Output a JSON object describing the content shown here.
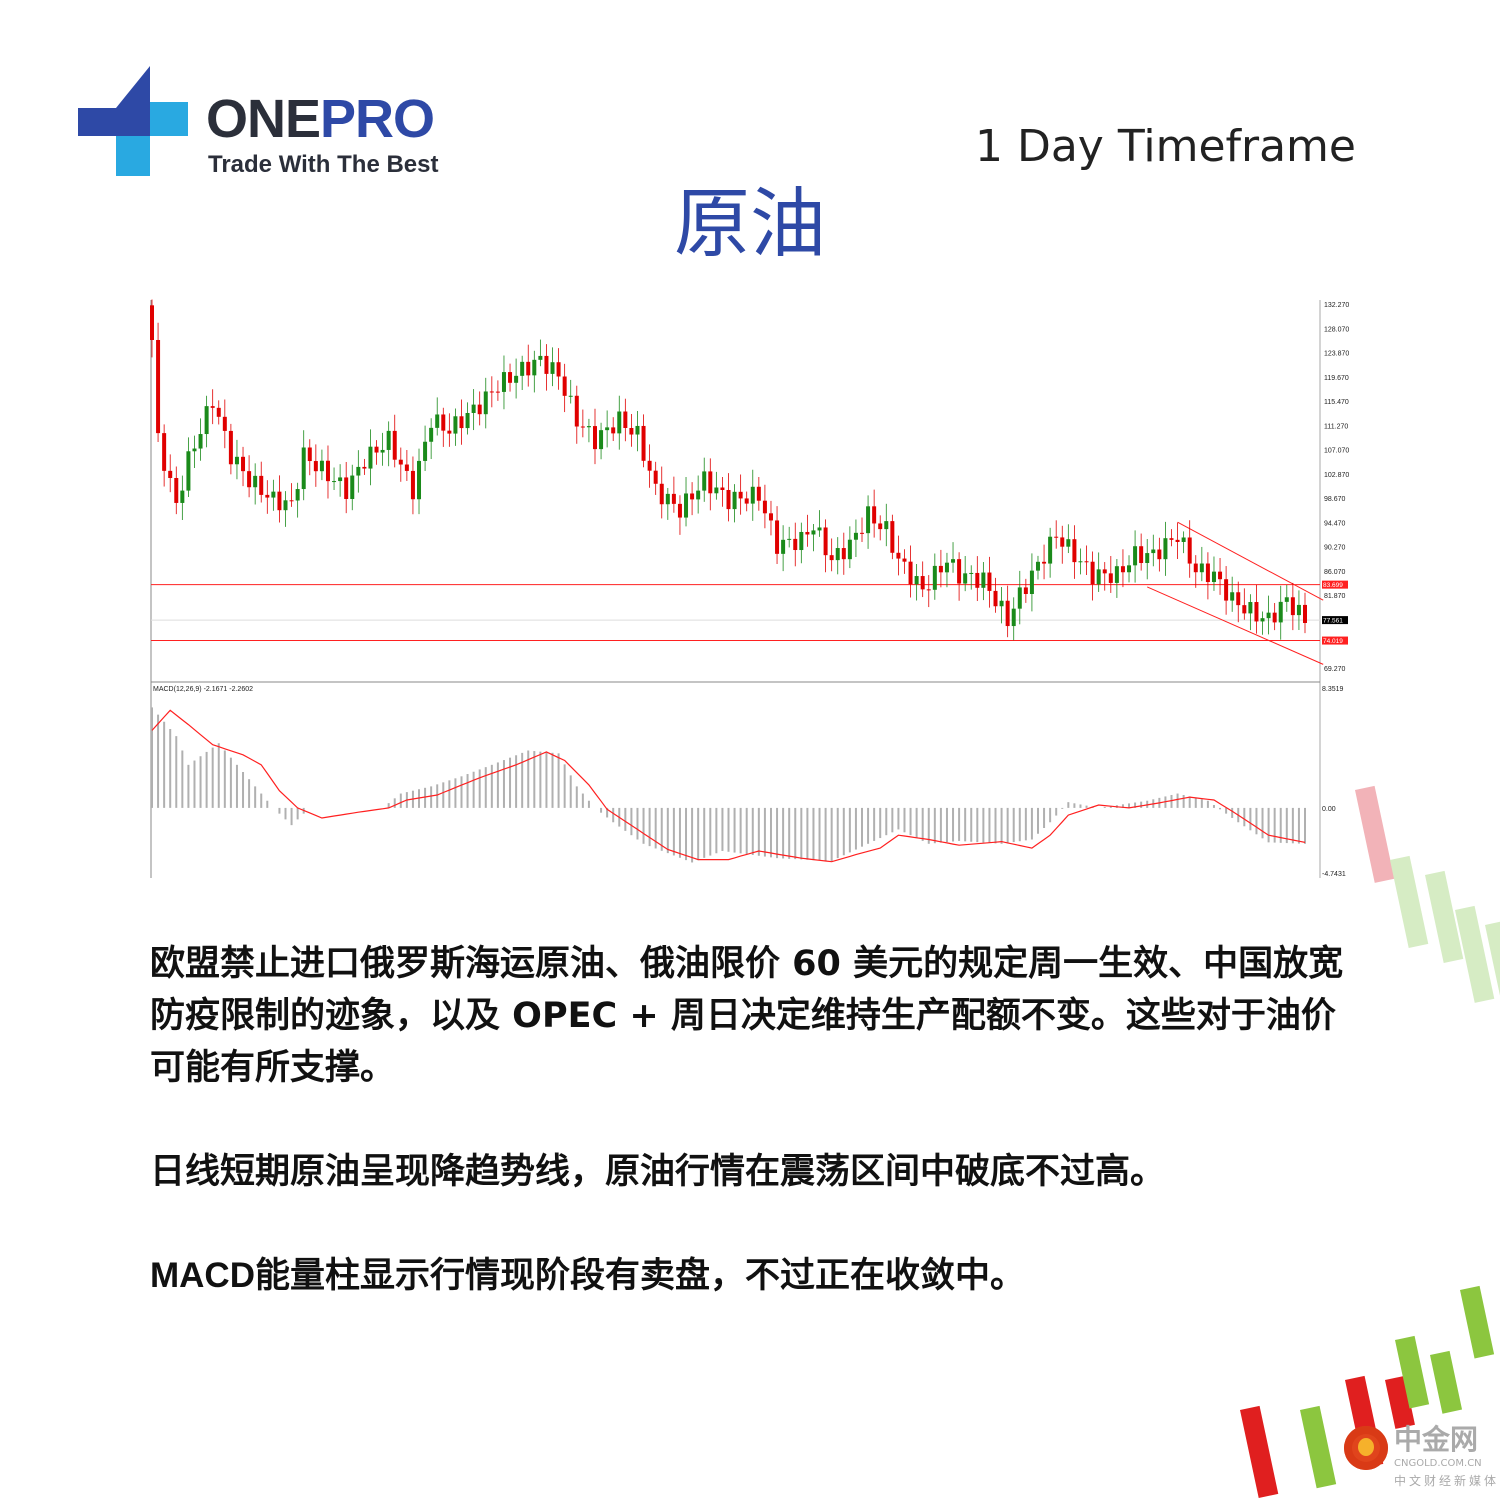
{
  "header": {
    "brand_one": "ONE",
    "brand_pro": "PRO",
    "tagline": "Trade With The Best",
    "timeframe": "1 Day Timeframe",
    "title": "原油"
  },
  "colors": {
    "brand_blue": "#2e49a6",
    "brand_light": "#29a9e1",
    "bull": "#1a8a1a",
    "bear": "#e00000",
    "level_line": "#ff2020"
  },
  "chart_data": {
    "type": "candlestick",
    "price_axis_ticks": [
      "132.270",
      "128.070",
      "123.870",
      "119.670",
      "115.470",
      "111.270",
      "107.070",
      "102.870",
      "98.670",
      "94.470",
      "90.270",
      "86.070",
      "81.870",
      "69.270"
    ],
    "ylim": [
      69.27,
      132.27
    ],
    "levels": [
      {
        "value": 83.699,
        "label": "83.699",
        "color": "#ff2020"
      },
      {
        "value": 74.019,
        "label": "74.019",
        "color": "#ff2020"
      },
      {
        "value": 77.561,
        "label": "77.561",
        "color": "#000000"
      }
    ],
    "trendlines": [
      [
        [
          169,
          94.5
        ],
        [
          193,
          81.0
        ]
      ],
      [
        [
          164,
          83.3
        ],
        [
          193,
          69.9
        ]
      ]
    ],
    "closes": [
      [
        0,
        126.04
      ],
      [
        1,
        108.73
      ],
      [
        4,
        97.48
      ],
      [
        6,
        105.27
      ],
      [
        10,
        115.65
      ],
      [
        13,
        106.13
      ],
      [
        16,
        101.81
      ],
      [
        20,
        98.35
      ],
      [
        23,
        97.48
      ],
      [
        25,
        106.13
      ],
      [
        28,
        103.54
      ],
      [
        32,
        100.08
      ],
      [
        35,
        105.27
      ],
      [
        39,
        108.73
      ],
      [
        43,
        100.08
      ],
      [
        46,
        112.19
      ],
      [
        49,
        110.46
      ],
      [
        54,
        114.79
      ],
      [
        57,
        118.25
      ],
      [
        61,
        120.85
      ],
      [
        64,
        122.58
      ],
      [
        67,
        119.98
      ],
      [
        70,
        112.19
      ],
      [
        73,
        108.73
      ],
      [
        77,
        112.19
      ],
      [
        80,
        109.6
      ],
      [
        83,
        100.08
      ],
      [
        87,
        96.62
      ],
      [
        91,
        101.81
      ],
      [
        95,
        98.35
      ],
      [
        100,
        99.21
      ],
      [
        103,
        90.56
      ],
      [
        107,
        91.42
      ],
      [
        109,
        94.02
      ],
      [
        112,
        87.96
      ],
      [
        115,
        90.56
      ],
      [
        118,
        95.75
      ],
      [
        121,
        93.15
      ],
      [
        123,
        87.96
      ],
      [
        127,
        82.77
      ],
      [
        131,
        87.96
      ],
      [
        133,
        85.36
      ],
      [
        137,
        84.5
      ],
      [
        141,
        77.58
      ],
      [
        143,
        81.9
      ],
      [
        146,
        87.1
      ],
      [
        149,
        92.29
      ],
      [
        152,
        88.83
      ],
      [
        155,
        85.36
      ],
      [
        159,
        85.36
      ],
      [
        162,
        88.83
      ],
      [
        165,
        88.83
      ],
      [
        169,
        92.29
      ],
      [
        172,
        86.23
      ],
      [
        175,
        85.36
      ],
      [
        178,
        81.04
      ],
      [
        182,
        78.44
      ],
      [
        184,
        77.58
      ],
      [
        187,
        81.04
      ],
      [
        190,
        77.56
      ]
    ],
    "macd": {
      "label": "MACD(12,26,9) -2.1671 -2.2602",
      "axis_ticks": [
        "8.3519",
        "0.00",
        "-4.7431"
      ],
      "ylim": [
        -4.7431,
        8.3519
      ],
      "histogram": [
        [
          0,
          7
        ],
        [
          4,
          5
        ],
        [
          6,
          3
        ],
        [
          11,
          4.5
        ],
        [
          16,
          2
        ],
        [
          20,
          0
        ],
        [
          23,
          -1.2
        ],
        [
          26,
          0
        ],
        [
          38,
          0
        ],
        [
          41,
          1
        ],
        [
          46,
          1.5
        ],
        [
          51,
          2.2
        ],
        [
          56,
          3
        ],
        [
          62,
          4
        ],
        [
          67,
          3.8
        ],
        [
          70,
          1.5
        ],
        [
          73,
          0
        ],
        [
          76,
          -1
        ],
        [
          81,
          -2.5
        ],
        [
          89,
          -3.8
        ],
        [
          94,
          -3
        ],
        [
          103,
          -3.5
        ],
        [
          112,
          -3.7
        ],
        [
          118,
          -2.5
        ],
        [
          123,
          -1.5
        ],
        [
          128,
          -2.5
        ],
        [
          133,
          -2.3
        ],
        [
          140,
          -2.5
        ],
        [
          145,
          -2.2
        ],
        [
          148,
          -1
        ],
        [
          151,
          0.4
        ],
        [
          156,
          0
        ],
        [
          164,
          0.5
        ],
        [
          169,
          1
        ],
        [
          174,
          0.5
        ],
        [
          179,
          -1
        ],
        [
          184,
          -2.4
        ],
        [
          190,
          -2.5
        ]
      ],
      "signal": [
        [
          0,
          5.4
        ],
        [
          3,
          6.8
        ],
        [
          6,
          5.8
        ],
        [
          10,
          4.4
        ],
        [
          15,
          3.7
        ],
        [
          18,
          3
        ],
        [
          21,
          1.2
        ],
        [
          24,
          0
        ],
        [
          28,
          -0.7
        ],
        [
          34,
          -0.3
        ],
        [
          39,
          0
        ],
        [
          42,
          0.55
        ],
        [
          47,
          0.9
        ],
        [
          54,
          2.1
        ],
        [
          60,
          3
        ],
        [
          65,
          3.9
        ],
        [
          68,
          3.3
        ],
        [
          72,
          1.6
        ],
        [
          75,
          -0.1
        ],
        [
          80,
          -1.5
        ],
        [
          85,
          -2.9
        ],
        [
          90,
          -3.6
        ],
        [
          95,
          -3.6
        ],
        [
          100,
          -3
        ],
        [
          107,
          -3.5
        ],
        [
          112,
          -3.75
        ],
        [
          116,
          -3.25
        ],
        [
          120,
          -2.8
        ],
        [
          123,
          -1.9
        ],
        [
          128,
          -2.2
        ],
        [
          133,
          -2.6
        ],
        [
          140,
          -2.35
        ],
        [
          145,
          -2.8
        ],
        [
          148,
          -1.9
        ],
        [
          151,
          -0.5
        ],
        [
          156,
          0.2
        ],
        [
          161,
          0
        ],
        [
          166,
          0.35
        ],
        [
          171,
          0.75
        ],
        [
          175,
          0.55
        ],
        [
          179,
          -0.5
        ],
        [
          184,
          -1.9
        ],
        [
          190,
          -2.4
        ]
      ]
    }
  },
  "body": {
    "p1": "欧盟禁止进口俄罗斯海运原油、俄油限价 60 美元的规定周一生效、中国放宽防疫限制的迹象，以及 OPEC + 周日决定维持生产配额不变。这些对于油价可能有所支撑。",
    "p2": "日线短期原油呈现降趋势线，原油行情在震荡区间中破底不过高。",
    "p3": "MACD能量柱显示行情现阶段有卖盘，不过正在收敛中。"
  },
  "watermark": {
    "name": "中金网",
    "domain": "CNGOLD.COM.CN",
    "slogan": "中文财经新媒体"
  }
}
